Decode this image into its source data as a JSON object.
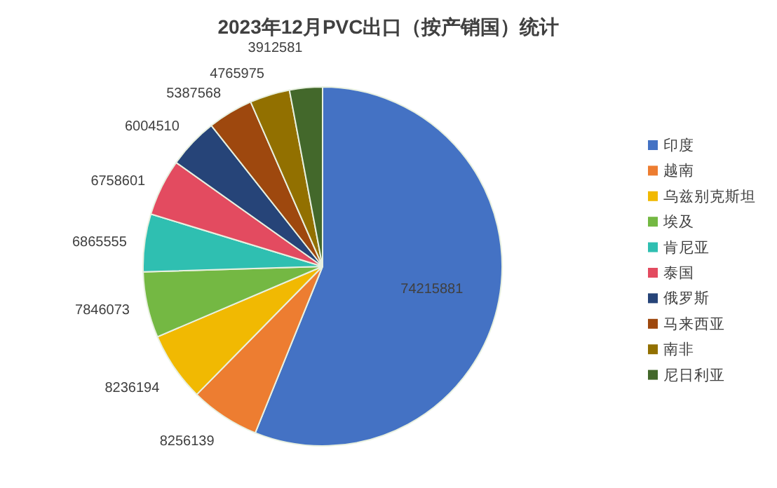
{
  "chart_data": {
    "type": "pie",
    "title": "2023年12月PVC出口（按产销国）统计",
    "categories": [
      "印度",
      "越南",
      "乌兹别克斯坦",
      "埃及",
      "肯尼亚",
      "泰国",
      "俄罗斯",
      "马来西亚",
      "南非",
      "尼日利亚"
    ],
    "values": [
      74215881,
      8256139,
      8236194,
      7846073,
      6865555,
      6758601,
      6004510,
      5387568,
      4765975,
      3912581
    ],
    "colors": [
      "#4472c4",
      "#ed7d31",
      "#f1b902",
      "#74b843",
      "#2fbfb1",
      "#e34b60",
      "#264478",
      "#9e480e",
      "#927000",
      "#43682b"
    ],
    "data_labels": true,
    "legend": "right"
  }
}
